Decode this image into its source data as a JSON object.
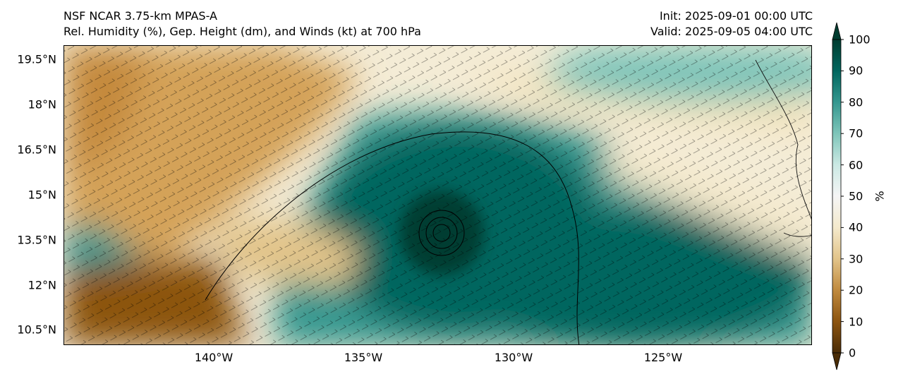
{
  "header": {
    "title_left_line1": "NSF NCAR 3.75-km MPAS-A",
    "title_left_line2": "Rel. Humidity (%), Gep. Height (dm), and Winds (kt) at 700 hPa",
    "title_right_line1": "Init: 2025-09-01 00:00 UTC",
    "title_right_line2": "Valid: 2025-09-05 04:00 UTC"
  },
  "map": {
    "lat_labels": [
      "19.5°N",
      "18°N",
      "16.5°N",
      "15°N",
      "13.5°N",
      "12°N",
      "10.5°N"
    ],
    "lat_values": [
      19.5,
      18,
      16.5,
      15,
      13.5,
      12,
      10.5
    ],
    "lon_labels": [
      "140°W",
      "135°W",
      "130°W",
      "125°W"
    ],
    "lon_values": [
      -140,
      -135,
      -130,
      -125
    ],
    "extent": {
      "lon_min": -145.3,
      "lon_max": -120.3,
      "lat_min": 10.0,
      "lat_max": 20.0
    },
    "cyclone_center": {
      "lon": -132.4,
      "lat": 13.7
    }
  },
  "colorbar": {
    "label": "%",
    "ticks": [
      "0",
      "10",
      "20",
      "30",
      "40",
      "50",
      "60",
      "70",
      "80",
      "90",
      "100"
    ],
    "min": 0,
    "max": 100,
    "colors": [
      "#4a2c06",
      "#8c5410",
      "#c08a3e",
      "#e2c48a",
      "#f4e9cc",
      "#f5f5f5",
      "#cbe9e4",
      "#7fc5b9",
      "#35978f",
      "#01665e",
      "#003c30"
    ]
  }
}
